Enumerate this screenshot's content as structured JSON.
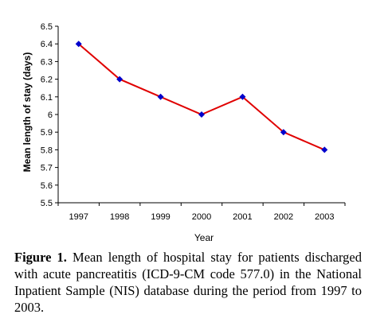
{
  "chart_data": {
    "type": "line",
    "x": [
      "1997",
      "1998",
      "1999",
      "2000",
      "2001",
      "2002",
      "2003"
    ],
    "series": [
      {
        "values": [
          6.4,
          6.2,
          6.1,
          6.0,
          6.1,
          5.9,
          5.8
        ]
      }
    ],
    "xlabel": "Year",
    "ylabel": "Mean length of stay (days)",
    "ylim": [
      5.5,
      6.5
    ],
    "yticks": [
      "5.5",
      "5.6",
      "5.7",
      "5.8",
      "5.9",
      "6",
      "6.1",
      "6.2",
      "6.3",
      "6.4",
      "6.5"
    ],
    "grid": false,
    "line_color": "#e00000",
    "marker_color": "#0000cc"
  },
  "caption": {
    "label": "Figure 1.",
    "text": " Mean length of hospital stay for patients discharged with acute pancreatitis (ICD-9-CM code 577.0) in the National Inpatient Sample (NIS) database during the period from 1997 to 2003."
  }
}
